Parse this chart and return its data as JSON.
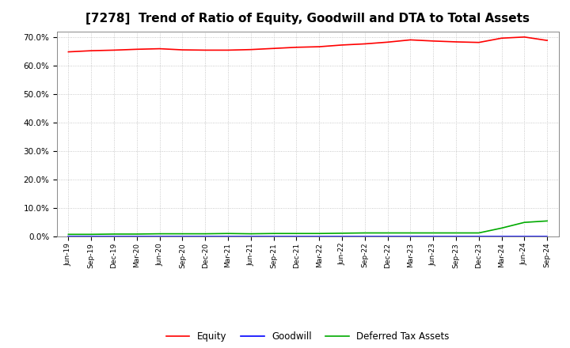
{
  "title": "[7278]  Trend of Ratio of Equity, Goodwill and DTA to Total Assets",
  "title_fontsize": 11,
  "x_labels": [
    "Jun-19",
    "Sep-19",
    "Dec-19",
    "Mar-20",
    "Jun-20",
    "Sep-20",
    "Dec-20",
    "Mar-21",
    "Jun-21",
    "Sep-21",
    "Dec-21",
    "Mar-22",
    "Jun-22",
    "Sep-22",
    "Dec-22",
    "Mar-23",
    "Jun-23",
    "Sep-23",
    "Dec-23",
    "Mar-24",
    "Jun-24",
    "Sep-24"
  ],
  "equity": [
    0.648,
    0.652,
    0.654,
    0.657,
    0.659,
    0.655,
    0.654,
    0.654,
    0.656,
    0.66,
    0.664,
    0.666,
    0.672,
    0.676,
    0.682,
    0.69,
    0.686,
    0.683,
    0.681,
    0.696,
    0.7,
    0.688
  ],
  "goodwill": [
    0.0,
    0.0,
    0.0,
    0.0,
    0.0,
    0.0,
    0.0,
    0.0,
    0.0,
    0.0,
    0.0,
    0.0,
    0.0,
    0.0,
    0.0,
    0.0,
    0.0,
    0.0,
    0.0,
    0.0,
    0.0,
    0.0
  ],
  "dta": [
    0.008,
    0.008,
    0.009,
    0.009,
    0.01,
    0.01,
    0.01,
    0.011,
    0.01,
    0.011,
    0.011,
    0.011,
    0.012,
    0.013,
    0.013,
    0.013,
    0.013,
    0.013,
    0.013,
    0.03,
    0.05,
    0.055
  ],
  "equity_color": "#ff0000",
  "goodwill_color": "#0000ff",
  "dta_color": "#00aa00",
  "ylim": [
    0.0,
    0.72
  ],
  "yticks": [
    0.0,
    0.1,
    0.2,
    0.3,
    0.4,
    0.5,
    0.6,
    0.7
  ],
  "legend_labels": [
    "Equity",
    "Goodwill",
    "Deferred Tax Assets"
  ],
  "background_color": "#ffffff",
  "grid_color": "#bbbbbb"
}
